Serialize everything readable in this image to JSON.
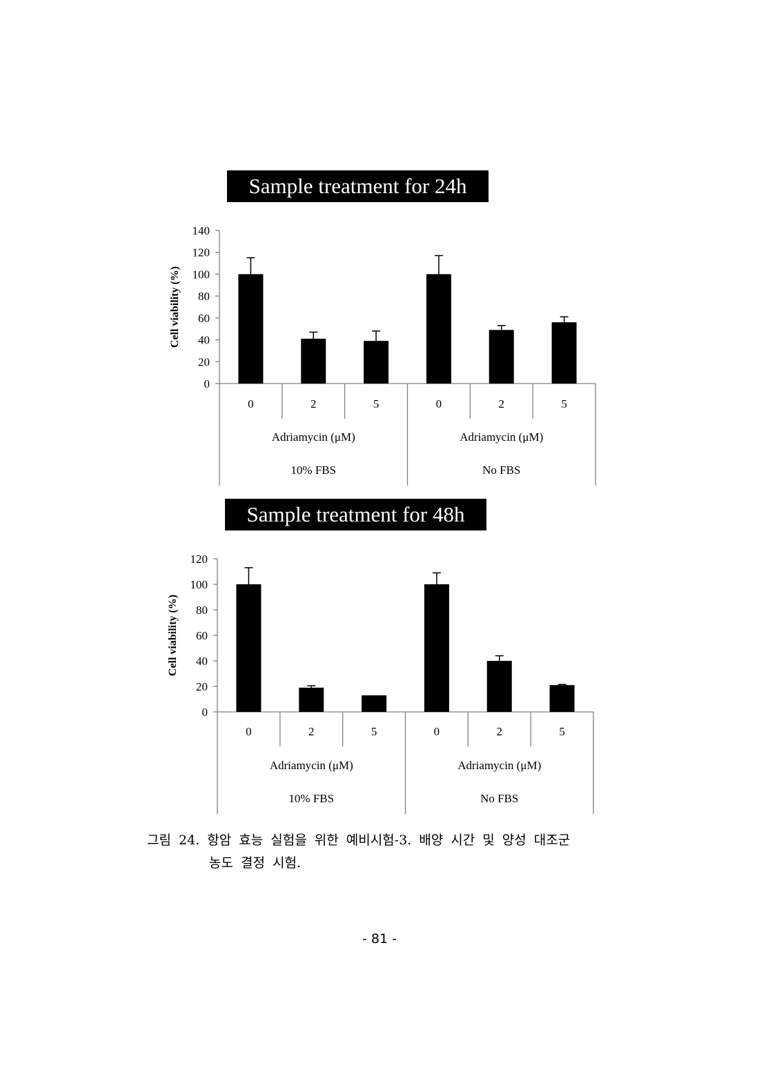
{
  "chart_data": [
    {
      "type": "bar",
      "title": "Sample treatment for 24h",
      "ylabel": "Cell viability (%)",
      "ylim": [
        0,
        140
      ],
      "yticks": [
        0,
        20,
        40,
        60,
        80,
        100,
        120,
        140
      ],
      "categories": [
        "0",
        "2",
        "5",
        "0",
        "2",
        "5"
      ],
      "values": [
        100,
        41,
        39,
        100,
        49,
        56
      ],
      "errors": [
        15,
        6,
        9,
        17,
        4,
        5
      ],
      "groups": [
        {
          "axis_label": "Adriamycin (μM)",
          "condition": "10% FBS"
        },
        {
          "axis_label": "Adriamycin (μM)",
          "condition": "No FBS"
        }
      ],
      "grid": false,
      "bar_color": "#000000"
    },
    {
      "type": "bar",
      "title": "Sample treatment for 48h",
      "ylabel": "Cell viability (%)",
      "ylim": [
        0,
        120
      ],
      "yticks": [
        0,
        20,
        40,
        60,
        80,
        100,
        120
      ],
      "categories": [
        "0",
        "2",
        "5",
        "0",
        "2",
        "5"
      ],
      "values": [
        100,
        19,
        13,
        100,
        40,
        21
      ],
      "errors": [
        13,
        1.5,
        0,
        9,
        4,
        0.5
      ],
      "groups": [
        {
          "axis_label": "Adriamycin (μM)",
          "condition": "10% FBS"
        },
        {
          "axis_label": "Adriamycin (μM)",
          "condition": "No FBS"
        }
      ],
      "grid": false,
      "bar_color": "#000000"
    }
  ],
  "caption": {
    "line1": "그림 24. 항암 효능 실험을 위한 예비시험-3. 배양 시간 및 양성 대조군",
    "line2": "농도 결정 시험."
  },
  "page_number": "- 81 -"
}
